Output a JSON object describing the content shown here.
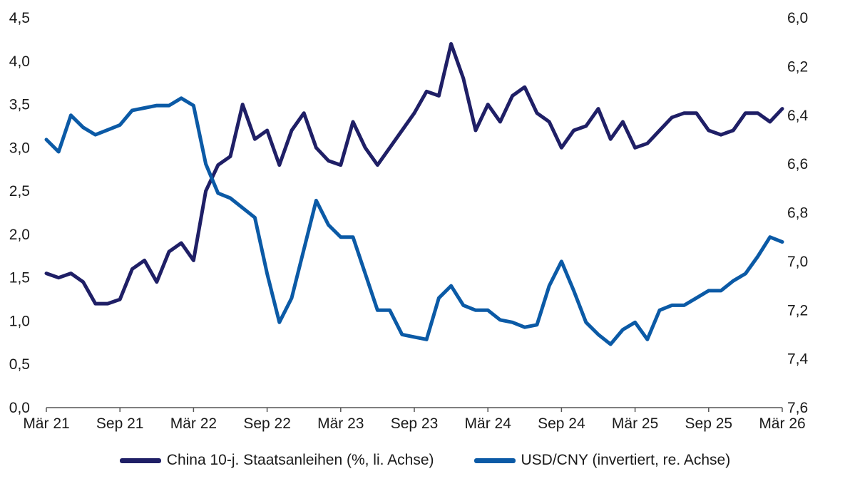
{
  "chart_data": {
    "type": "line",
    "title": "",
    "x_ticks": [
      "Mär 21",
      "Sep 21",
      "Mär 22",
      "Sep 22",
      "Mär 23",
      "Sep 23",
      "Mär 24",
      "Sep 24",
      "Mär 25",
      "Sep 25",
      "Mär 26"
    ],
    "y_left": {
      "range": [
        0,
        4.5
      ],
      "ticks": [
        "0,0",
        "0,5",
        "1,0",
        "1,5",
        "2,0",
        "2,5",
        "3,0",
        "3,5",
        "4,0",
        "4,5"
      ]
    },
    "y_right": {
      "range": [
        6.0,
        7.6
      ],
      "inverted": true,
      "ticks": [
        "6,0",
        "6,2",
        "6,4",
        "6,6",
        "6,8",
        "7,0",
        "7,2",
        "7,4",
        "7,6"
      ]
    },
    "legend_position": "bottom",
    "series": [
      {
        "name": "China 10-j. Staatsanleihen (%, li. Achse)",
        "axis": "left",
        "color": "#1f1f66",
        "x": [
          "2021-03",
          "2021-04",
          "2021-05",
          "2021-06",
          "2021-07",
          "2021-08",
          "2021-09",
          "2021-10",
          "2021-11",
          "2021-12",
          "2022-01",
          "2022-02",
          "2022-03",
          "2022-04",
          "2022-05",
          "2022-06",
          "2022-07",
          "2022-08",
          "2022-09",
          "2022-10",
          "2022-11",
          "2022-12",
          "2023-01",
          "2023-02",
          "2023-03",
          "2023-04",
          "2023-05",
          "2023-06",
          "2023-07",
          "2023-08",
          "2023-09",
          "2023-10",
          "2023-11",
          "2023-12",
          "2024-01",
          "2024-02",
          "2024-03",
          "2024-04",
          "2024-05",
          "2024-06",
          "2024-07",
          "2024-08",
          "2024-09",
          "2024-10",
          "2024-11",
          "2024-12",
          "2025-01",
          "2025-02",
          "2025-03",
          "2025-04",
          "2025-05",
          "2025-06",
          "2025-07",
          "2025-08",
          "2025-09",
          "2025-10",
          "2025-11",
          "2025-12",
          "2026-01",
          "2026-02",
          "2026-03"
        ],
        "values": [
          1.55,
          1.5,
          1.55,
          1.45,
          1.2,
          1.2,
          1.25,
          1.6,
          1.7,
          1.45,
          1.8,
          1.9,
          1.7,
          2.5,
          2.8,
          2.9,
          3.5,
          3.1,
          3.2,
          2.8,
          3.2,
          3.4,
          3.0,
          2.85,
          2.8,
          3.3,
          3.0,
          2.8,
          3.0,
          3.2,
          3.4,
          3.65,
          3.6,
          4.2,
          3.8,
          3.2,
          3.5,
          3.3,
          3.6,
          3.7,
          3.4,
          3.3,
          3.0,
          3.2,
          3.25,
          3.45,
          3.1,
          3.3,
          3.0,
          3.05,
          3.2,
          3.35,
          3.4,
          3.4,
          3.2,
          3.15,
          3.2,
          3.4,
          3.4,
          3.3,
          3.45
        ]
      },
      {
        "name": "USD/CNY (invertiert, re. Achse)",
        "axis": "right",
        "color": "#0b5aa6",
        "x": [
          "2021-03",
          "2021-04",
          "2021-05",
          "2021-06",
          "2021-07",
          "2021-08",
          "2021-09",
          "2021-10",
          "2021-11",
          "2021-12",
          "2022-01",
          "2022-02",
          "2022-03",
          "2022-04",
          "2022-05",
          "2022-06",
          "2022-07",
          "2022-08",
          "2022-09",
          "2022-10",
          "2022-11",
          "2022-12",
          "2023-01",
          "2023-02",
          "2023-03",
          "2023-04",
          "2023-05",
          "2023-06",
          "2023-07",
          "2023-08",
          "2023-09",
          "2023-10",
          "2023-11",
          "2023-12",
          "2024-01",
          "2024-02",
          "2024-03",
          "2024-04",
          "2024-05",
          "2024-06",
          "2024-07",
          "2024-08",
          "2024-09",
          "2024-10",
          "2024-11",
          "2024-12",
          "2025-01",
          "2025-02",
          "2025-03",
          "2025-04",
          "2025-05",
          "2025-06",
          "2025-07",
          "2025-08",
          "2025-09",
          "2025-10",
          "2025-11",
          "2025-12",
          "2026-01",
          "2026-02",
          "2026-03"
        ],
        "values": [
          6.5,
          6.55,
          6.4,
          6.45,
          6.48,
          6.46,
          6.44,
          6.38,
          6.37,
          6.36,
          6.36,
          6.33,
          6.36,
          6.6,
          6.72,
          6.74,
          6.78,
          6.82,
          7.05,
          7.25,
          7.15,
          6.95,
          6.75,
          6.85,
          6.9,
          6.9,
          7.05,
          7.2,
          7.2,
          7.3,
          7.31,
          7.32,
          7.15,
          7.1,
          7.18,
          7.2,
          7.2,
          7.24,
          7.25,
          7.27,
          7.26,
          7.1,
          7.0,
          7.12,
          7.25,
          7.3,
          7.34,
          7.28,
          7.25,
          7.32,
          7.2,
          7.18,
          7.18,
          7.15,
          7.12,
          7.12,
          7.08,
          7.05,
          6.98,
          6.9,
          6.92
        ]
      }
    ]
  }
}
